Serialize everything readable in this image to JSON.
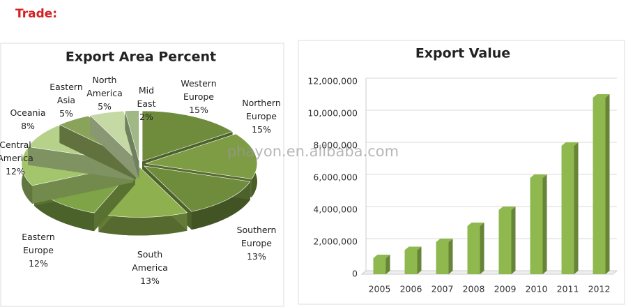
{
  "heading": "Trade:",
  "watermark": "phayon.en.alibaba.com",
  "chart_data": [
    {
      "type": "pie",
      "title": "Export Area Percent",
      "categories": [
        "Western Europe",
        "Northern Europe",
        "Southern Europe",
        "South America",
        "Eastern Europe",
        "Central America",
        "Oceania",
        "Eastern Asia",
        "North America",
        "Mid East"
      ],
      "values": [
        15,
        15,
        13,
        13,
        12,
        12,
        8,
        5,
        5,
        2
      ],
      "value_labels": [
        "15%",
        "15%",
        "13%",
        "13%",
        "12%",
        "12%",
        "8%",
        "5%",
        "5%",
        "2%"
      ],
      "colors": [
        "#6e8c3c",
        "#7d9c44",
        "#6e8c3c",
        "#8fb04f",
        "#7fa347",
        "#a3c56b",
        "#b6d18a",
        "#8aa35a",
        "#c4d9a3",
        "#9fb885"
      ]
    },
    {
      "type": "bar",
      "title": "Export Value",
      "categories": [
        "2005",
        "2006",
        "2007",
        "2008",
        "2009",
        "2010",
        "2011",
        "2012"
      ],
      "values": [
        1000000,
        1500000,
        2000000,
        3000000,
        4000000,
        6000000,
        8000000,
        11000000
      ],
      "color": "#8fb84e",
      "ylim": [
        0,
        12000000
      ],
      "yticks": [
        0,
        {
          "value": 2000000,
          "label": "2,000,000"
        },
        {
          "value": 4000000,
          "label": "4,000,000"
        },
        {
          "value": 6000000,
          "label": "6,000,000"
        },
        {
          "value": 8000000,
          "label": "8,000,000"
        },
        {
          "value": 10000000,
          "label": "10,000,000"
        },
        {
          "value": 12000000,
          "label": "12,000,000"
        }
      ],
      "grid": true
    }
  ]
}
